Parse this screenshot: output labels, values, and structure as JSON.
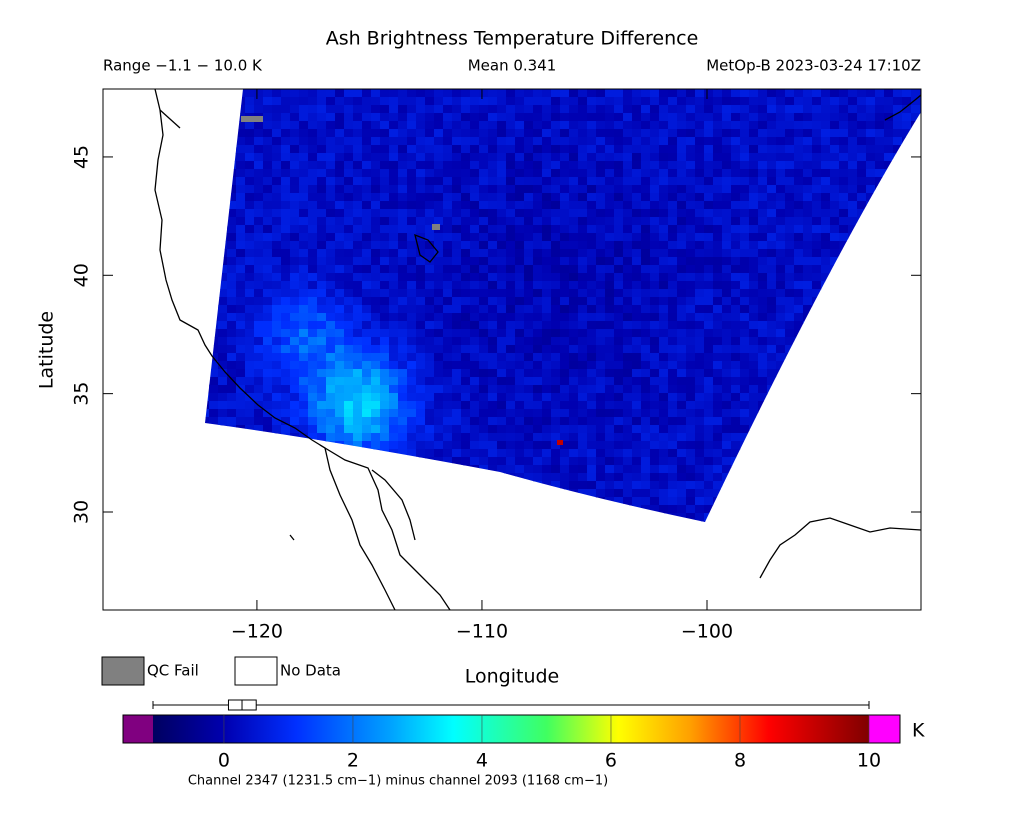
{
  "header": {
    "title": "Ash Brightness Temperature Difference",
    "range": "Range −1.1 − 10.0 K",
    "mean": "Mean 0.341",
    "source": "MetOp-B 2023-03-24 17:10Z"
  },
  "map": {
    "xlabel": "Longitude",
    "ylabel": "Latitude",
    "xlim": [
      -126.84,
      -90.49
    ],
    "ylim": [
      25.86,
      47.87
    ],
    "xticks": [
      {
        "value": -120,
        "label": "−120"
      },
      {
        "value": -110,
        "label": "−110"
      },
      {
        "value": -100,
        "label": "−100"
      }
    ],
    "yticks": [
      30,
      35,
      40,
      45
    ]
  },
  "legend": {
    "qc_fail": "QC Fail",
    "no_data": "No Data"
  },
  "colorbar": {
    "lim": [
      -1.1,
      10
    ],
    "ticks": [
      0,
      2,
      4,
      6,
      8,
      10
    ],
    "unit": "K",
    "caption": "Channel 2347 (1231.5 cm−1) minus channel 2093 (1168 cm−1)",
    "box": {
      "min": -1.1,
      "q1": 0.07,
      "median": 0.28,
      "q3": 0.5,
      "max": 10
    }
  }
}
